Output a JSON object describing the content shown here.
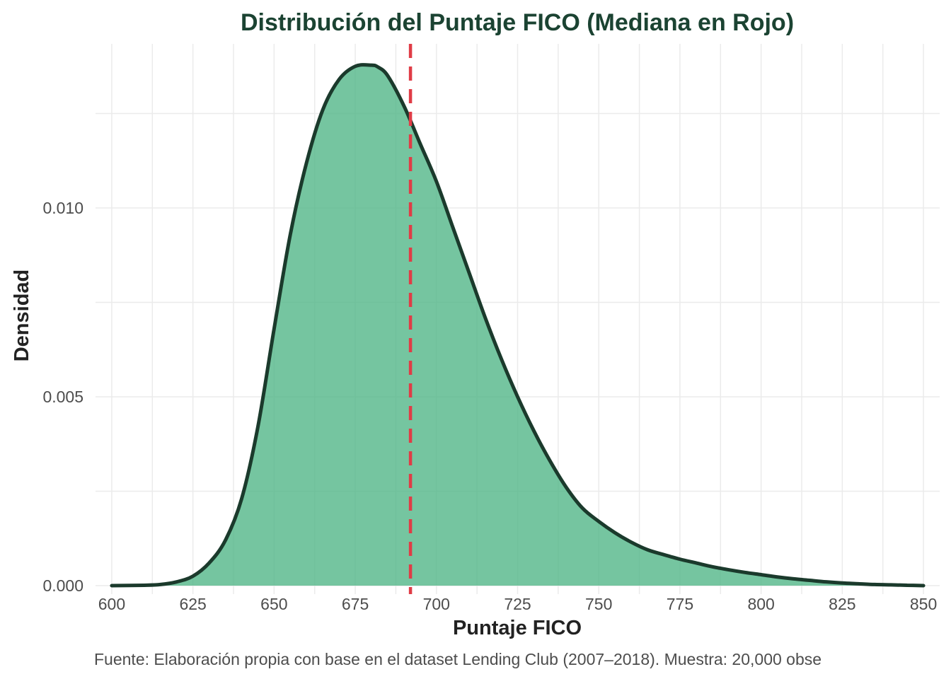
{
  "chart_data": {
    "type": "area",
    "title": "Distribución del Puntaje FICO (Mediana en Rojo)",
    "xlabel": "Puntaje FICO",
    "ylabel": "Densidad",
    "caption": "Fuente: Elaboración propia con base en el dataset Lending Club (2007–2018). Muestra: 20,000 obse",
    "xlim": [
      595,
      855
    ],
    "ylim": [
      0,
      0.01375
    ],
    "x_ticks": [
      600,
      625,
      650,
      675,
      700,
      725,
      750,
      775,
      800,
      825,
      850
    ],
    "x_tick_labels": [
      "600",
      "625",
      "650",
      "675",
      "700",
      "725",
      "750",
      "775",
      "800",
      "825",
      "850"
    ],
    "y_ticks": [
      0.0,
      0.005,
      0.01
    ],
    "y_tick_labels": [
      "0.000",
      "0.005",
      "0.010"
    ],
    "grid": true,
    "median": 692,
    "colors": {
      "fill": "#52b788",
      "outline": "#1b3a2c",
      "median": "#e03c46",
      "title": "#1b4332"
    },
    "series": [
      {
        "x": [
          600,
          610,
          615,
          620,
          625,
          630,
          635,
          640,
          645,
          650,
          655,
          660,
          665,
          670,
          675,
          680,
          682,
          685,
          690,
          695,
          700,
          705,
          710,
          715,
          720,
          725,
          730,
          735,
          740,
          745,
          750,
          755,
          760,
          765,
          770,
          775,
          780,
          785,
          790,
          795,
          800,
          805,
          810,
          815,
          820,
          825,
          830,
          835,
          840,
          845,
          850
        ],
        "y": [
          0.0,
          1e-05,
          3e-05,
          0.0001,
          0.00025,
          0.0006,
          0.0012,
          0.0023,
          0.0042,
          0.0068,
          0.0093,
          0.0112,
          0.0126,
          0.0134,
          0.01375,
          0.01378,
          0.01373,
          0.0135,
          0.0127,
          0.0117,
          0.0107,
          0.0095,
          0.0083,
          0.0071,
          0.006,
          0.005,
          0.0041,
          0.0033,
          0.0026,
          0.00205,
          0.0017,
          0.0014,
          0.00115,
          0.00095,
          0.00082,
          0.0007,
          0.0006,
          0.0005,
          0.00042,
          0.00035,
          0.00029,
          0.00023,
          0.00018,
          0.00014,
          0.0001,
          7e-05,
          5e-05,
          3e-05,
          2e-05,
          1e-05,
          0.0
        ]
      }
    ]
  }
}
